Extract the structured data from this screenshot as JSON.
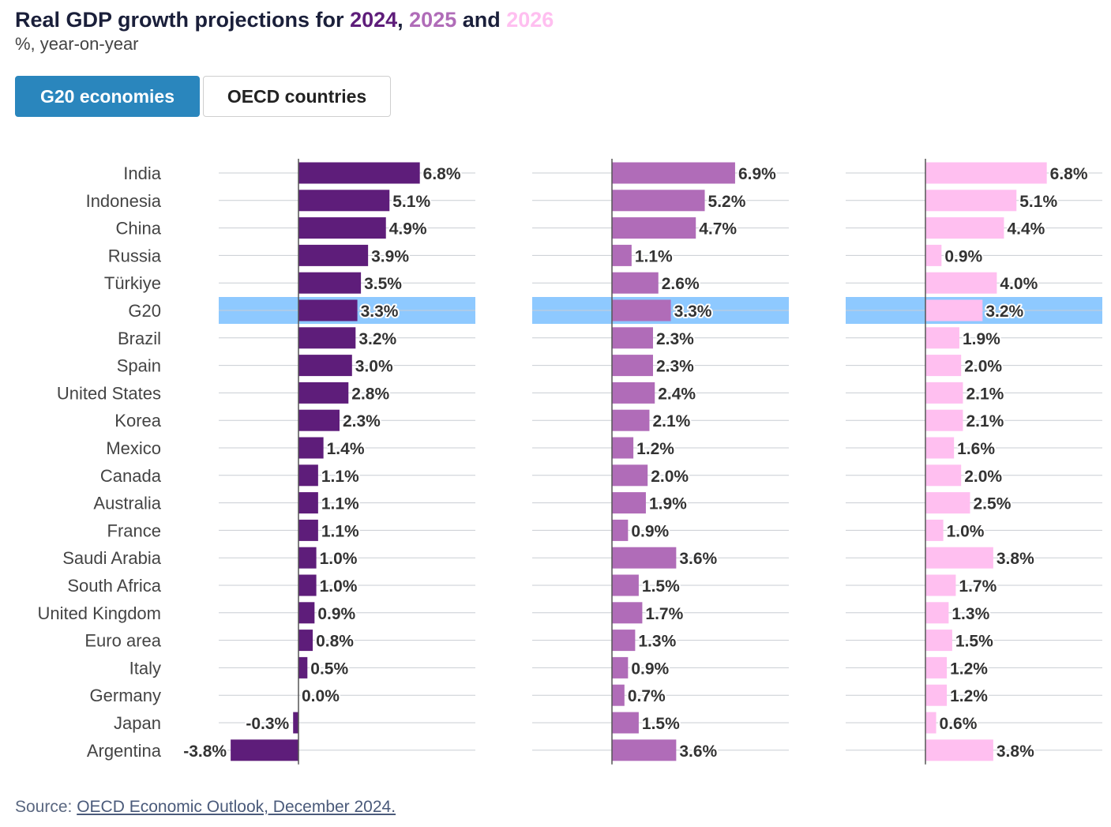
{
  "title": {
    "prefix": "Real GDP growth projections for ",
    "year1": "2024",
    "sep1": ", ",
    "year2": "2025",
    "sep2": " and ",
    "year3": "2026"
  },
  "subtitle": "%, year-on-year",
  "tabs": [
    {
      "label": "G20 economies",
      "active": true
    },
    {
      "label": "OECD countries",
      "active": false
    }
  ],
  "source": {
    "prefix": "Source: ",
    "link": "OECD Economic Outlook, December 2024."
  },
  "colors": {
    "y2024": "#5e1d7a",
    "y2025": "#b06cb8",
    "y2026": "#ffbff0",
    "highlight": "#8ec9ff",
    "title_text": "#1a1f3a"
  },
  "chart_data": {
    "type": "bar",
    "orientation": "horizontal",
    "highlight": "G20",
    "categories": [
      "India",
      "Indonesia",
      "China",
      "Russia",
      "Türkiye",
      "G20",
      "Brazil",
      "Spain",
      "United States",
      "Korea",
      "Mexico",
      "Canada",
      "Australia",
      "France",
      "Saudi Arabia",
      "South Africa",
      "United Kingdom",
      "Euro area",
      "Italy",
      "Germany",
      "Japan",
      "Argentina"
    ],
    "series": [
      {
        "name": "2024",
        "values": [
          6.8,
          5.1,
          4.9,
          3.9,
          3.5,
          3.3,
          3.2,
          3.0,
          2.8,
          2.3,
          1.4,
          1.1,
          1.1,
          1.1,
          1.0,
          1.0,
          0.9,
          0.8,
          0.5,
          0.0,
          -0.3,
          -3.8
        ],
        "labels": [
          "6.8%",
          "5.1%",
          "4.9%",
          "3.9%",
          "3.5%",
          "3.3%",
          "3.2%",
          "3.0%",
          "2.8%",
          "2.3%",
          "1.4%",
          "1.1%",
          "1.1%",
          "1.1%",
          "1.0%",
          "1.0%",
          "0.9%",
          "0.8%",
          "0.5%",
          "0.0%",
          "-0.3%",
          "-3.8%"
        ]
      },
      {
        "name": "2025",
        "values": [
          6.9,
          5.2,
          4.7,
          1.1,
          2.6,
          3.3,
          2.3,
          2.3,
          2.4,
          2.1,
          1.2,
          2.0,
          1.9,
          0.9,
          3.6,
          1.5,
          1.7,
          1.3,
          0.9,
          0.7,
          1.5,
          3.6
        ],
        "labels": [
          "6.9%",
          "5.2%",
          "4.7%",
          "1.1%",
          "2.6%",
          "3.3%",
          "2.3%",
          "2.3%",
          "2.4%",
          "2.1%",
          "1.2%",
          "2.0%",
          "1.9%",
          "0.9%",
          "3.6%",
          "1.5%",
          "1.7%",
          "1.3%",
          "0.9%",
          "0.7%",
          "1.5%",
          "3.6%"
        ]
      },
      {
        "name": "2026",
        "values": [
          6.8,
          5.1,
          4.4,
          0.9,
          4.0,
          3.2,
          1.9,
          2.0,
          2.1,
          2.1,
          1.6,
          2.0,
          2.5,
          1.0,
          3.8,
          1.7,
          1.3,
          1.5,
          1.2,
          1.2,
          0.6,
          3.8
        ],
        "labels": [
          "6.8%",
          "5.1%",
          "4.4%",
          "0.9%",
          "4.0%",
          "3.2%",
          "1.9%",
          "2.0%",
          "2.1%",
          "2.1%",
          "1.6%",
          "2.0%",
          "2.5%",
          "1.0%",
          "3.8%",
          "1.7%",
          "1.3%",
          "1.5%",
          "1.2%",
          "1.2%",
          "0.6%",
          "3.8%"
        ]
      }
    ]
  }
}
